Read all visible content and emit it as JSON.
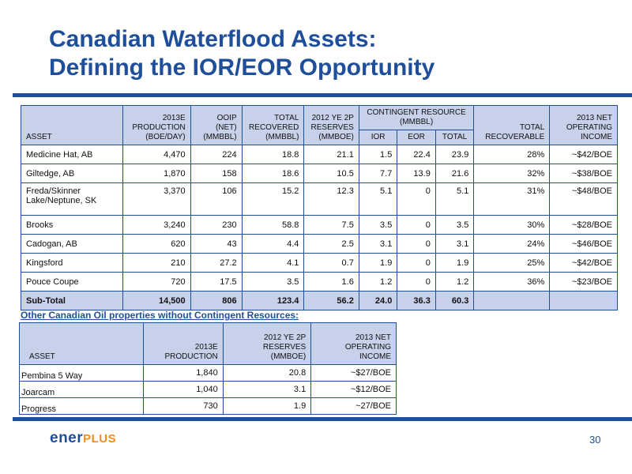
{
  "title": {
    "line1": "Canadian Waterflood Assets:",
    "line2": "Defining the IOR/EOR Opportunity"
  },
  "waterflood_table": {
    "headers": {
      "asset": "ASSET",
      "production_2013e": "2013E PRODUCTION (BOE/DAY)",
      "ooip": "OOIP (NET) (MMBBL)",
      "total_recovered": "TOTAL RECOVERED (MMBBL)",
      "reserves_2012": "2012 YE 2P RESERVES (MMBOE)",
      "contingent_resource": "CONTINGENT RESOURCE (MMBBL)",
      "ior": "IOR",
      "eor": "EOR",
      "total": "TOTAL",
      "total_recoverable": "TOTAL RECOVERABLE",
      "net_operating_income": "2013 NET OPERATING INCOME"
    },
    "rows": [
      {
        "asset": "Medicine Hat, AB",
        "production": "4,470",
        "ooip": "224",
        "recovered": "18.8",
        "reserves": "21.1",
        "ior": "1.5",
        "eor": "22.4",
        "total": "23.9",
        "recoverable": "28%",
        "income": "~$42/BOE"
      },
      {
        "asset": "Giltedge, AB",
        "production": "1,870",
        "ooip": "158",
        "recovered": "18.6",
        "reserves": "10.5",
        "ior": "7.7",
        "eor": "13.9",
        "total": "21.6",
        "recoverable": "32%",
        "income": "~$38/BOE"
      },
      {
        "asset": "Freda/Skinner Lake/Neptune, SK",
        "production": "3,370",
        "ooip": "106",
        "recovered": "15.2",
        "reserves": "12.3",
        "ior": "5.1",
        "eor": "0",
        "total": "5.1",
        "recoverable": "31%",
        "income": "~$48/BOE"
      },
      {
        "asset": "Brooks",
        "production": "3,240",
        "ooip": "230",
        "recovered": "58.8",
        "reserves": "7.5",
        "ior": "3.5",
        "eor": "0",
        "total": "3.5",
        "recoverable": "30%",
        "income": "~$28/BOE"
      },
      {
        "asset": "Cadogan, AB",
        "production": "620",
        "ooip": "43",
        "recovered": "4.4",
        "reserves": "2.5",
        "ior": "3.1",
        "eor": "0",
        "total": "3.1",
        "recoverable": "24%",
        "income": "~$46/BOE"
      },
      {
        "asset": "Kingsford",
        "production": "210",
        "ooip": "27.2",
        "recovered": "4.1",
        "reserves": "0.7",
        "ior": "1.9",
        "eor": "0",
        "total": "1.9",
        "recoverable": "25%",
        "income": "~$42/BOE"
      },
      {
        "asset": "Pouce Coupe",
        "production": "720",
        "ooip": "17.5",
        "recovered": "3.5",
        "reserves": "1.6",
        "ior": "1.2",
        "eor": "0",
        "total": "1.2",
        "recoverable": "36%",
        "income": "~$23/BOE"
      }
    ],
    "subtotal": {
      "asset": "Sub-Total",
      "production": "14,500",
      "ooip": "806",
      "recovered": "123.4",
      "reserves": "56.2",
      "ior": "24.0",
      "eor": "36.3",
      "total": "60.3"
    }
  },
  "other_heading": "Other Canadian Oil properties without Contingent Resources:",
  "other_table": {
    "headers": {
      "asset": "ASSET",
      "production": "2013E PRODUCTION",
      "reserves": "2012 YE 2P RESERVES (MMBOE)",
      "income": "2013 NET OPERATING INCOME"
    },
    "rows": [
      {
        "asset": "Pembina 5 Way",
        "production": "1,840",
        "reserves": "20.8",
        "income": "~$27/BOE"
      },
      {
        "asset": "Joarcam",
        "production": "1,040",
        "reserves": "3.1",
        "income": "~$12/BOE"
      },
      {
        "asset": "Progress",
        "production": "730",
        "reserves": "1.9",
        "income": "~27/BOE"
      }
    ]
  },
  "footer": {
    "logo_part1": "ener",
    "logo_part2": "PLUS",
    "page_number": "30"
  },
  "colors": {
    "brand_blue": "#1f4e9a",
    "header_fill": "#c7d2ea",
    "logo_orange": "#f28c1e"
  }
}
